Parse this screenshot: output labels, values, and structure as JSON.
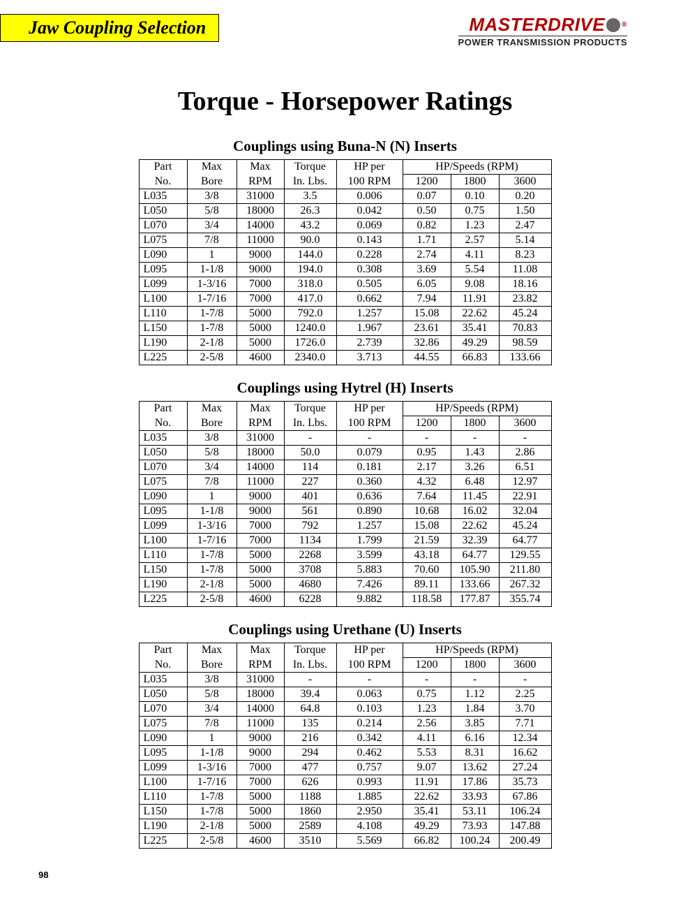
{
  "header": {
    "section_title": "Jaw Coupling Selection",
    "brand_name": "MASTERDRIVE",
    "brand_tag": "POWER TRANSMISSION PRODUCTS",
    "brand_color": "#b00000"
  },
  "main_title": "Torque - Horsepower Ratings",
  "page_number": "98",
  "tables": [
    {
      "title": "Couplings using Buna-N (N) Inserts",
      "header_top": [
        "Part",
        "Max",
        "Max",
        "Torque",
        "HP per",
        "HP/Speeds (RPM)"
      ],
      "header_bottom": [
        "No.",
        "Bore",
        "RPM",
        "In. Lbs.",
        "100 RPM",
        "1200",
        "1800",
        "3600"
      ],
      "rows": [
        [
          "L035",
          "3/8",
          "31000",
          "3.5",
          "0.006",
          "0.07",
          "0.10",
          "0.20"
        ],
        [
          "L050",
          "5/8",
          "18000",
          "26.3",
          "0.042",
          "0.50",
          "0.75",
          "1.50"
        ],
        [
          "L070",
          "3/4",
          "14000",
          "43.2",
          "0.069",
          "0.82",
          "1.23",
          "2.47"
        ],
        [
          "L075",
          "7/8",
          "11000",
          "90.0",
          "0.143",
          "1.71",
          "2.57",
          "5.14"
        ],
        [
          "L090",
          "1",
          "9000",
          "144.0",
          "0.228",
          "2.74",
          "4.11",
          "8.23"
        ],
        [
          "L095",
          "1-1/8",
          "9000",
          "194.0",
          "0.308",
          "3.69",
          "5.54",
          "11.08"
        ],
        [
          "L099",
          "1-3/16",
          "7000",
          "318.0",
          "0.505",
          "6.05",
          "9.08",
          "18.16"
        ],
        [
          "L100",
          "1-7/16",
          "7000",
          "417.0",
          "0.662",
          "7.94",
          "11.91",
          "23.82"
        ],
        [
          "L110",
          "1-7/8",
          "5000",
          "792.0",
          "1.257",
          "15.08",
          "22.62",
          "45.24"
        ],
        [
          "L150",
          "1-7/8",
          "5000",
          "1240.0",
          "1.967",
          "23.61",
          "35.41",
          "70.83"
        ],
        [
          "L190",
          "2-1/8",
          "5000",
          "1726.0",
          "2.739",
          "32.86",
          "49.29",
          "98.59"
        ],
        [
          "L225",
          "2-5/8",
          "4600",
          "2340.0",
          "3.713",
          "44.55",
          "66.83",
          "133.66"
        ]
      ]
    },
    {
      "title": "Couplings using Hytrel (H) Inserts",
      "header_top": [
        "Part",
        "Max",
        "Max",
        "Torque",
        "HP per",
        "HP/Speeds (RPM)"
      ],
      "header_bottom": [
        "No.",
        "Bore",
        "RPM",
        "In. Lbs.",
        "100 RPM",
        "1200",
        "1800",
        "3600"
      ],
      "rows": [
        [
          "L035",
          "3/8",
          "31000",
          "-",
          "-",
          "-",
          "-",
          "-"
        ],
        [
          "L050",
          "5/8",
          "18000",
          "50.0",
          "0.079",
          "0.95",
          "1.43",
          "2.86"
        ],
        [
          "L070",
          "3/4",
          "14000",
          "114",
          "0.181",
          "2.17",
          "3.26",
          "6.51"
        ],
        [
          "L075",
          "7/8",
          "11000",
          "227",
          "0.360",
          "4.32",
          "6.48",
          "12.97"
        ],
        [
          "L090",
          "1",
          "9000",
          "401",
          "0.636",
          "7.64",
          "11.45",
          "22.91"
        ],
        [
          "L095",
          "1-1/8",
          "9000",
          "561",
          "0.890",
          "10.68",
          "16.02",
          "32.04"
        ],
        [
          "L099",
          "1-3/16",
          "7000",
          "792",
          "1.257",
          "15.08",
          "22.62",
          "45.24"
        ],
        [
          "L100",
          "1-7/16",
          "7000",
          "1134",
          "1.799",
          "21.59",
          "32.39",
          "64.77"
        ],
        [
          "L110",
          "1-7/8",
          "5000",
          "2268",
          "3.599",
          "43.18",
          "64.77",
          "129.55"
        ],
        [
          "L150",
          "1-7/8",
          "5000",
          "3708",
          "5.883",
          "70.60",
          "105.90",
          "211.80"
        ],
        [
          "L190",
          "2-1/8",
          "5000",
          "4680",
          "7.426",
          "89.11",
          "133.66",
          "267.32"
        ],
        [
          "L225",
          "2-5/8",
          "4600",
          "6228",
          "9.882",
          "118.58",
          "177.87",
          "355.74"
        ]
      ]
    },
    {
      "title": "Couplings using Urethane (U) Inserts",
      "header_top": [
        "Part",
        "Max",
        "Max",
        "Torque",
        "HP per",
        "HP/Speeds (RPM)"
      ],
      "header_bottom": [
        "No.",
        "Bore",
        "RPM",
        "In. Lbs.",
        "100 RPM",
        "1200",
        "1800",
        "3600"
      ],
      "rows": [
        [
          "L035",
          "3/8",
          "31000",
          "-",
          "-",
          "-",
          "-",
          "-"
        ],
        [
          "L050",
          "5/8",
          "18000",
          "39.4",
          "0.063",
          "0.75",
          "1.12",
          "2.25"
        ],
        [
          "L070",
          "3/4",
          "14000",
          "64.8",
          "0.103",
          "1.23",
          "1.84",
          "3.70"
        ],
        [
          "L075",
          "7/8",
          "11000",
          "135",
          "0.214",
          "2.56",
          "3.85",
          "7.71"
        ],
        [
          "L090",
          "1",
          "9000",
          "216",
          "0.342",
          "4.11",
          "6.16",
          "12.34"
        ],
        [
          "L095",
          "1-1/8",
          "9000",
          "294",
          "0.462",
          "5.53",
          "8.31",
          "16.62"
        ],
        [
          "L099",
          "1-3/16",
          "7000",
          "477",
          "0.757",
          "9.07",
          "13.62",
          "27.24"
        ],
        [
          "L100",
          "1-7/16",
          "7000",
          "626",
          "0.993",
          "11.91",
          "17.86",
          "35.73"
        ],
        [
          "L110",
          "1-7/8",
          "5000",
          "1188",
          "1.885",
          "22.62",
          "33.93",
          "67.86"
        ],
        [
          "L150",
          "1-7/8",
          "5000",
          "1860",
          "2.950",
          "35.41",
          "53.11",
          "106.24"
        ],
        [
          "L190",
          "2-1/8",
          "5000",
          "2589",
          "4.108",
          "49.29",
          "73.93",
          "147.88"
        ],
        [
          "L225",
          "2-5/8",
          "4600",
          "3510",
          "5.569",
          "66.82",
          "100.24",
          "200.49"
        ]
      ]
    }
  ]
}
